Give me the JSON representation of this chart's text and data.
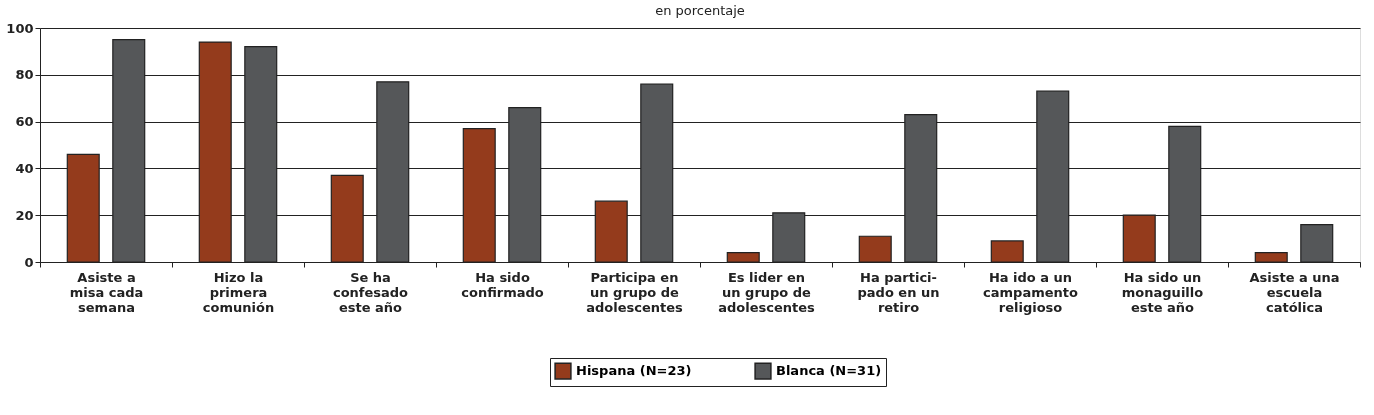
{
  "chart_data": {
    "type": "bar",
    "title": "en porcentaje",
    "categories": [
      "Asiste a\nmisa cada\nsemana",
      "Hizo la\nprimera\ncomunión",
      "Se ha\nconfesado\neste año",
      "Ha sido\nconfirmado",
      "Participa en\nun grupo de\nadolescentes",
      "Es lider en\nun grupo de\nadolescentes",
      "Ha partici-\npado en un\nretiro",
      "Ha ido a un\ncampamento\nreligioso",
      "Ha sido un\nmonaguillo\neste año",
      "Asiste a una\nescuela\ncatólica"
    ],
    "series": [
      {
        "name": "Hispana (N=23)",
        "color": "#943b1c",
        "values": [
          46,
          94,
          37,
          57,
          26,
          4,
          11,
          9,
          20,
          4
        ]
      },
      {
        "name": "Blanca (N=31)",
        "color": "#555759",
        "values": [
          95,
          92,
          77,
          66,
          76,
          21,
          63,
          73,
          58,
          16
        ]
      }
    ],
    "ylim": [
      0,
      100
    ],
    "yticks": [
      0,
      20,
      40,
      60,
      80,
      100
    ],
    "grid": "y",
    "legend": "bottom"
  }
}
